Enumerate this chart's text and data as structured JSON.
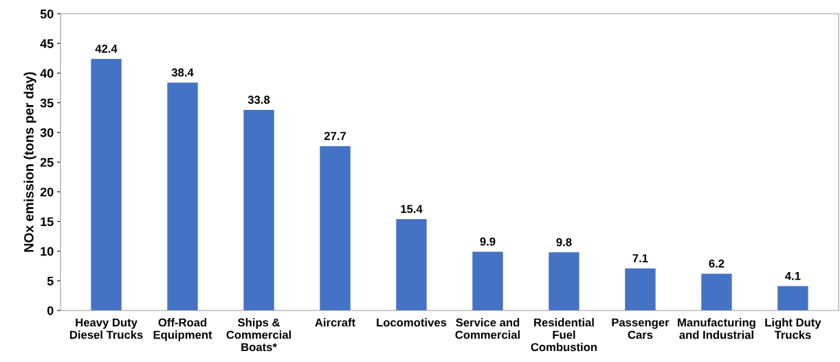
{
  "chart_data": {
    "type": "bar",
    "ylabel": "NOx emission (tons per day)",
    "categories": [
      "Heavy Duty\nDiesel Trucks",
      "Off-Road\nEquipment",
      "Ships &\nCommercial\nBoats*",
      "Aircraft",
      "Locomotives",
      "Service and\nCommercial",
      "Residential\nFuel\nCombustion",
      "Passenger\nCars",
      "Manufacturing\nand Industrial",
      "Light Duty\nTrucks"
    ],
    "values": [
      42.4,
      38.4,
      33.8,
      27.7,
      15.4,
      9.9,
      9.8,
      7.1,
      6.2,
      4.1
    ],
    "color": "#4472c4",
    "ylim": [
      0,
      50
    ],
    "yticks": [
      0,
      5,
      10,
      15,
      20,
      25,
      30,
      35,
      40,
      45,
      50
    ],
    "grid": false,
    "data_labels": true
  }
}
